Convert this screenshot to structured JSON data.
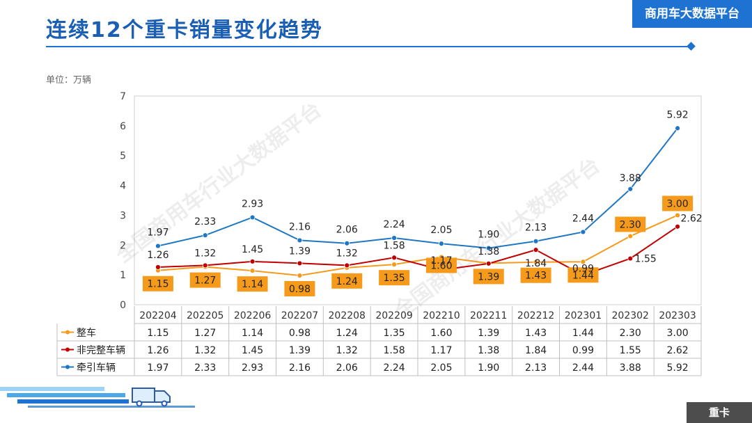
{
  "header": {
    "title": "连续12个重卡销量变化趋势",
    "brand": "商用车大数据平台",
    "unit_label": "单位：万辆",
    "watermark": "全国商用车行业大数据平台"
  },
  "footer": {
    "tag": "重卡"
  },
  "colors": {
    "accent": "#1e73d2",
    "title": "#1a5fb4",
    "zhengche": "#f59a1b",
    "feiwanzheng": "#c00000",
    "qianyin": "#1f77c4",
    "label_box": "#f59a1b"
  },
  "chart_data": {
    "type": "line",
    "title": "",
    "xlabel": "",
    "ylabel": "单位：万辆",
    "ylim": [
      0,
      7
    ],
    "yticks": [
      0,
      1,
      2,
      3,
      4,
      5,
      6,
      7
    ],
    "grid": false,
    "legend": "data-table",
    "categories": [
      "202204",
      "202205",
      "202206",
      "202207",
      "202208",
      "202209",
      "202210",
      "202211",
      "202212",
      "202301",
      "202302",
      "202303"
    ],
    "series": [
      {
        "name": "整车",
        "color": "#f59a1b",
        "label_style": "box",
        "values": [
          1.15,
          1.27,
          1.14,
          0.98,
          1.24,
          1.35,
          1.6,
          1.39,
          1.43,
          1.44,
          2.3,
          3.0
        ],
        "labels": [
          "1.15",
          "1.27",
          "1.14",
          "0.98",
          "1.24",
          "1.35",
          "1.60",
          "1.39",
          "1.43",
          "1.44",
          "2.30",
          "3.00"
        ]
      },
      {
        "name": "非完整车辆",
        "color": "#c00000",
        "label_style": "plain",
        "values": [
          1.26,
          1.32,
          1.45,
          1.39,
          1.32,
          1.58,
          1.17,
          1.38,
          1.84,
          0.99,
          1.55,
          2.62
        ],
        "labels": [
          "1.26",
          "1.32",
          "1.45",
          "1.39",
          "1.32",
          "1.58",
          "1.17",
          "1.38",
          "1.84",
          "0.99",
          "1.55",
          "2.62"
        ]
      },
      {
        "name": "牵引车辆",
        "color": "#1f77c4",
        "label_style": "plain",
        "values": [
          1.97,
          2.33,
          2.93,
          2.16,
          2.06,
          2.24,
          2.05,
          1.9,
          2.13,
          2.44,
          3.88,
          5.92
        ],
        "labels": [
          "1.97",
          "2.33",
          "2.93",
          "2.16",
          "2.06",
          "2.24",
          "2.05",
          "1.90",
          "2.13",
          "2.44",
          "3.88",
          "5.92"
        ]
      }
    ]
  }
}
